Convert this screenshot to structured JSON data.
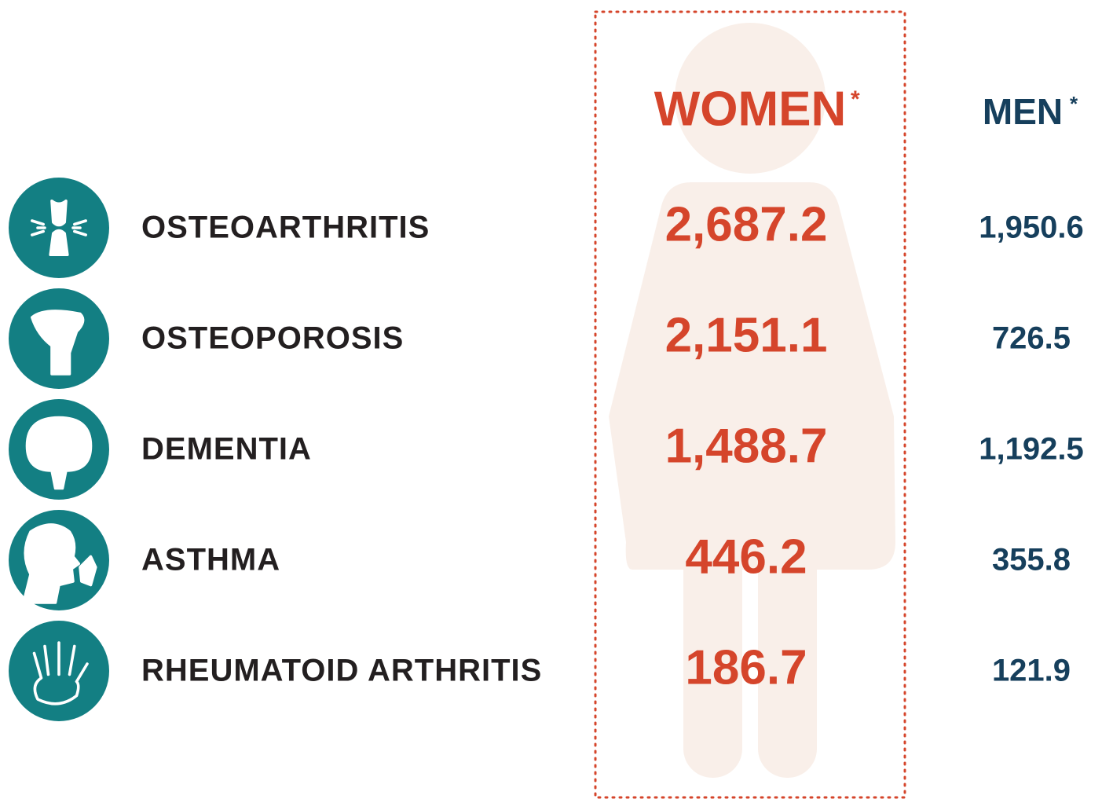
{
  "header": {
    "women": "WOMEN",
    "women_mark": "*",
    "men": "MEN",
    "men_mark": "*"
  },
  "table": {
    "rows": [
      [
        "OSTEOARTHRITIS",
        "2,687.2",
        "1,950.6"
      ],
      [
        "OSTEOPOROSIS",
        "2,151.1",
        "726.5"
      ],
      [
        "DEMENTIA",
        "1,488.7",
        "1,192.5"
      ],
      [
        "ASTHMA",
        "446.2",
        "355.8"
      ],
      [
        "RHEUMATOID ARTHRITIS",
        "186.7",
        "121.9"
      ]
    ]
  }
}
